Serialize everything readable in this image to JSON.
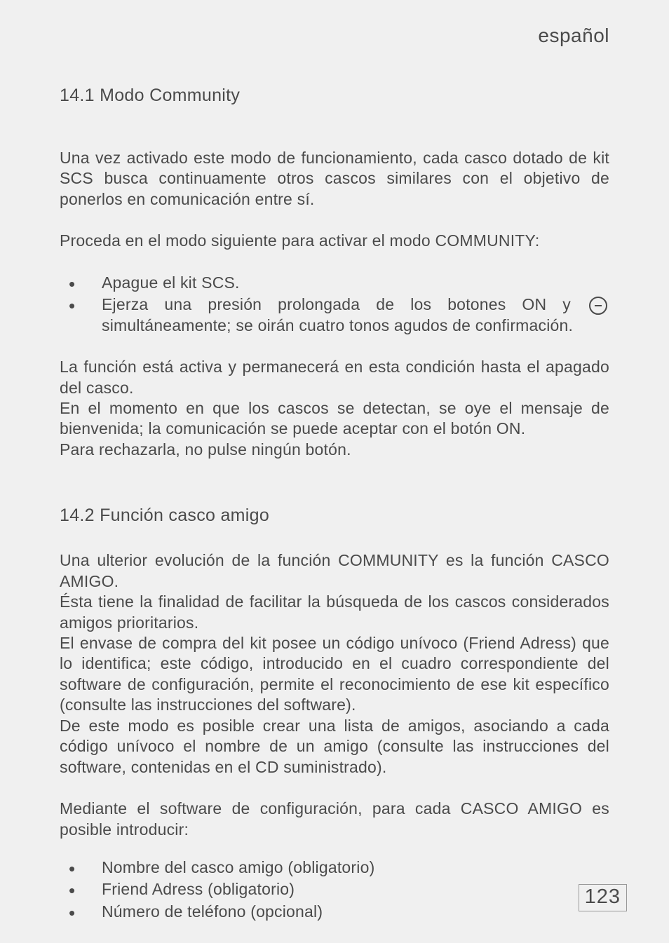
{
  "header": {
    "language": "español"
  },
  "section1": {
    "heading": "14.1 Modo Community",
    "para1": "Una vez activado este modo de funcionamiento, cada casco dotado de kit SCS busca continuamente otros cascos similares con el objetivo de ponerlos en comunicación entre sí.",
    "para2": "Proceda en el modo siguiente para activar el modo COMMUNITY:",
    "bullets": {
      "b1": "Apague el kit SCS.",
      "b2_before": "Ejerza una presión prolongada de los botones ON y ",
      "b2_after": " simultáneamente; se oirán cuatro tonos agudos de confirmación."
    },
    "para3": "La función está activa y permanecerá en esta condición hasta el apagado del casco.",
    "para4": "En el momento en que los cascos se detectan, se oye el mensaje de bienvenida; la comunicación se puede aceptar con el botón ON.",
    "para5": "Para rechazarla, no pulse ningún botón."
  },
  "section2": {
    "heading": "14.2 Función casco amigo",
    "para1": "Una ulterior evolución de la función COMMUNITY es la función CASCO AMIGO.",
    "para2": "Ésta tiene la finalidad de facilitar la búsqueda de los cascos considerados amigos prioritarios.",
    "para3": "El envase de compra del kit posee un código unívoco (Friend Adress) que lo identifica; este código, introducido en el cuadro correspondiente del software de configuración, permite el reconocimiento de ese kit específico (consulte las instrucciones del software).",
    "para4": "De este modo es posible crear una lista de amigos, asociando a cada código unívoco el nombre de un amigo (consulte las instrucciones del software, contenidas en el CD suministrado).",
    "para5": "Mediante el software de configuración, para cada CASCO AMIGO es posible introducir:",
    "bullets": {
      "b1": "Nombre del casco amigo (obligatorio)",
      "b2": "Friend Adress (obligatorio)",
      "b3": "Número de teléfono (opcional)"
    }
  },
  "footer": {
    "page_number": "123"
  },
  "colors": {
    "background": "#f0f0f0",
    "text": "#4a4a4a",
    "border": "#999999"
  },
  "typography": {
    "header_fontsize": 28,
    "heading_fontsize": 25,
    "body_fontsize": 23,
    "pagenum_fontsize": 29
  }
}
